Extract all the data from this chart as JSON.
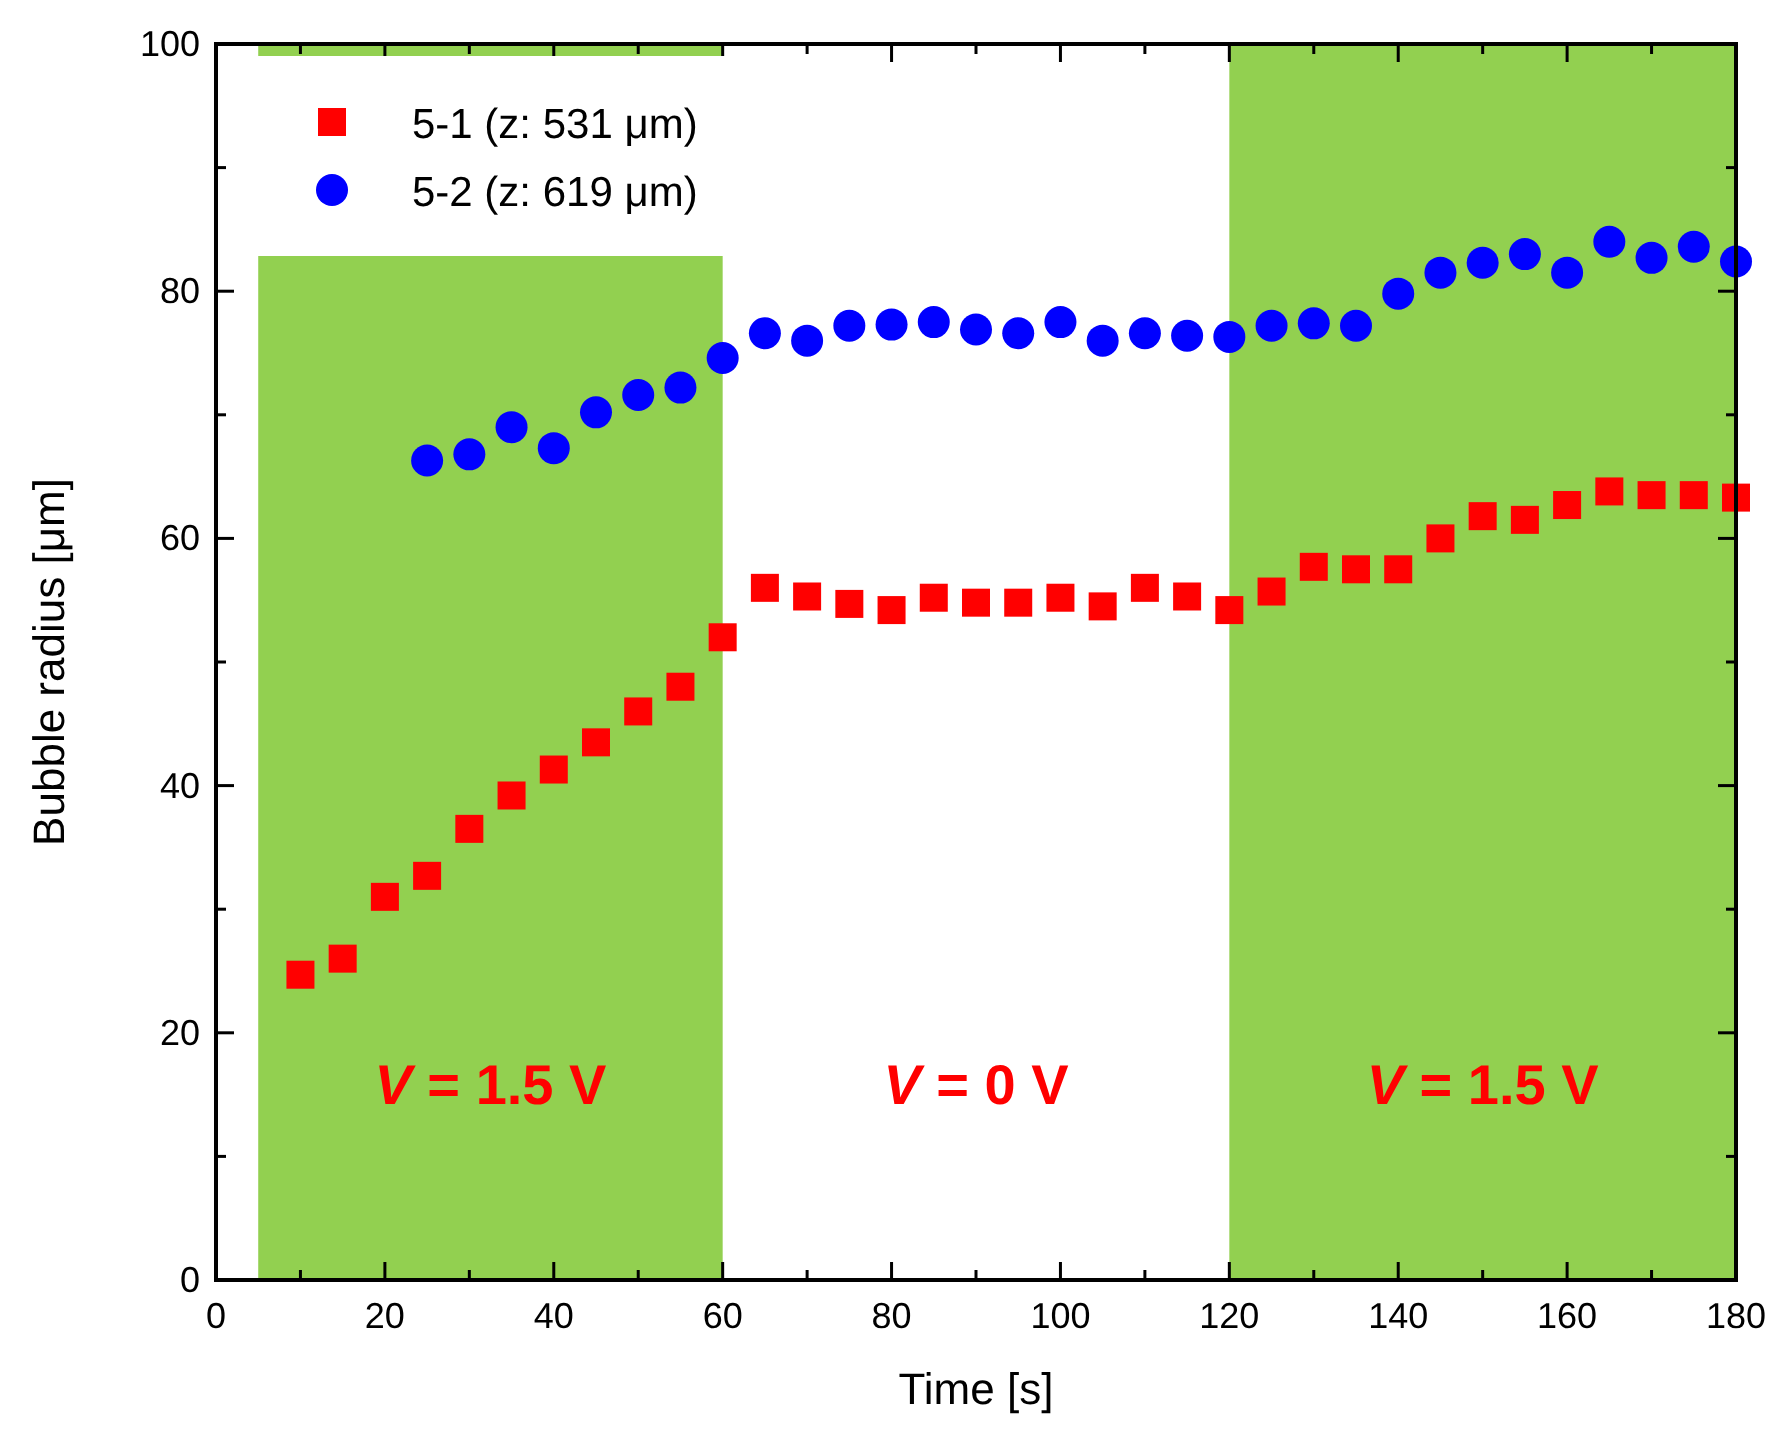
{
  "chart_data": {
    "type": "scatter",
    "xlabel": "Time [s]",
    "ylabel": "Bubble radius [μm]",
    "xlim": [
      0,
      180
    ],
    "ylim": [
      0,
      100
    ],
    "xticks": [
      0,
      20,
      40,
      60,
      80,
      100,
      120,
      140,
      160,
      180
    ],
    "yticks": [
      0,
      20,
      40,
      60,
      80,
      100
    ],
    "legend": "top left",
    "grid": false,
    "series": [
      {
        "name": "5-1 (z: 531 μm)",
        "color": "#ff0000",
        "marker": "square",
        "x": [
          10,
          15,
          20,
          25,
          30,
          35,
          40,
          45,
          50,
          55,
          60,
          65,
          70,
          75,
          80,
          85,
          90,
          95,
          100,
          105,
          110,
          115,
          120,
          125,
          130,
          135,
          140,
          145,
          150,
          155,
          160,
          165,
          170,
          175,
          180
        ],
        "values": [
          24.7,
          26,
          31,
          32.7,
          36.5,
          39.2,
          41.3,
          43.5,
          46,
          48,
          52,
          56,
          55.3,
          54.7,
          54.2,
          55.2,
          54.8,
          54.8,
          55.2,
          54.5,
          56,
          55.3,
          54.2,
          55.7,
          57.7,
          57.5,
          57.5,
          60,
          61.8,
          61.5,
          62.7,
          63.8,
          63.5,
          63.5,
          63.3
        ]
      },
      {
        "name": "5-2 (z: 619 μm)",
        "color": "#0000ff",
        "marker": "circle",
        "x": [
          25,
          30,
          35,
          40,
          45,
          50,
          55,
          60,
          65,
          70,
          75,
          80,
          85,
          90,
          95,
          100,
          105,
          110,
          115,
          120,
          125,
          130,
          135,
          140,
          145,
          150,
          155,
          160,
          165,
          170,
          175,
          180
        ],
        "values": [
          66.3,
          66.8,
          69,
          67.3,
          70.2,
          71.6,
          72.2,
          74.6,
          76.6,
          76,
          77.2,
          77.3,
          77.5,
          76.9,
          76.6,
          77.5,
          76,
          76.6,
          76.4,
          76.3,
          77.2,
          77.4,
          77.2,
          79.8,
          81.5,
          82.3,
          83,
          81.5,
          84,
          82.7,
          83.6,
          82.4
        ]
      }
    ],
    "bands": [
      {
        "axis": "x",
        "from": 5,
        "to": 60,
        "label": "V = 1.5 V",
        "color": "#92d050"
      },
      {
        "axis": "x",
        "from": 120,
        "to": 180,
        "label": "V = 1.5 V",
        "color": "#92d050"
      }
    ],
    "annotations": [
      "V = 0 V"
    ]
  }
}
